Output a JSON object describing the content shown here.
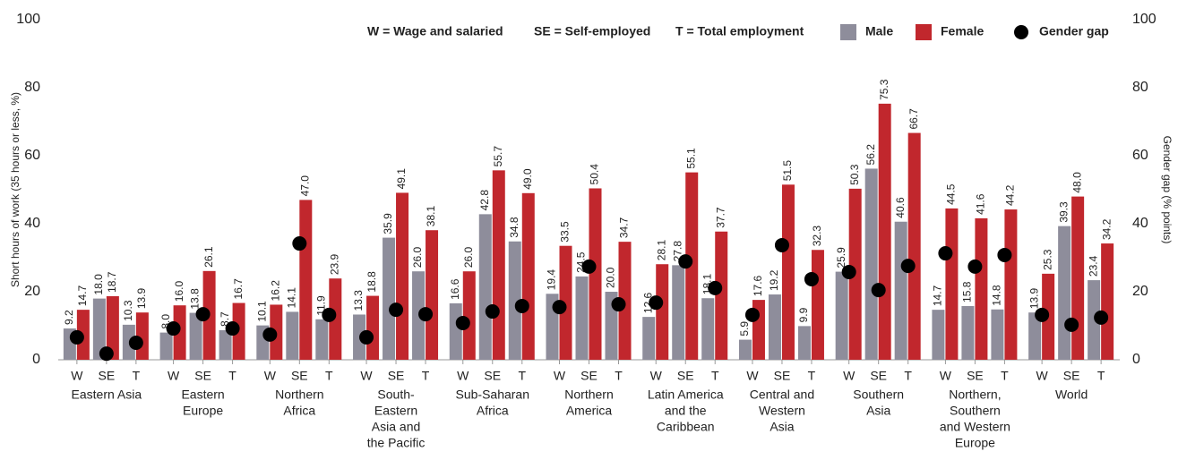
{
  "chart_data": {
    "type": "grouped-bar-dot",
    "notes": [
      "W = Wage and salaried",
      "SE = Self-employed",
      "T = Total employment"
    ],
    "ylabel": "Short hours of work (35 hours or less, %)",
    "y2label": "Gender gap (% points)",
    "ylim": [
      0,
      100
    ],
    "yticks": [
      0,
      20,
      40,
      60,
      80,
      100
    ],
    "y2lim": [
      0,
      100
    ],
    "y2ticks": [
      0,
      20,
      40,
      60,
      80,
      100
    ],
    "groups": [
      {
        "name_lines": [
          "Eastern Asia"
        ]
      },
      {
        "name_lines": [
          "Eastern",
          "Europe"
        ]
      },
      {
        "name_lines": [
          "Northern",
          "Africa"
        ]
      },
      {
        "name_lines": [
          "South-",
          "Eastern",
          "Asia and",
          "the Pacific"
        ]
      },
      {
        "name_lines": [
          "Sub-Saharan",
          "Africa"
        ]
      },
      {
        "name_lines": [
          "Northern",
          "America"
        ]
      },
      {
        "name_lines": [
          "Latin America",
          "and the",
          "Caribbean"
        ]
      },
      {
        "name_lines": [
          "Central and",
          "Western",
          "Asia"
        ]
      },
      {
        "name_lines": [
          "Southern",
          "Asia"
        ]
      },
      {
        "name_lines": [
          "Northern,",
          "Southern",
          "and Western",
          "Europe"
        ]
      },
      {
        "name_lines": [
          "World"
        ]
      }
    ],
    "categories": [
      "W",
      "SE",
      "T",
      "W",
      "SE",
      "T",
      "W",
      "SE",
      "T",
      "W",
      "SE",
      "T",
      "W",
      "SE",
      "T",
      "W",
      "SE",
      "T",
      "W",
      "SE",
      "T",
      "W",
      "SE",
      "T",
      "W",
      "SE",
      "T",
      "W",
      "SE",
      "T",
      "W",
      "SE",
      "T"
    ],
    "series": [
      {
        "name": "Male",
        "color": "#8e8d9b",
        "values": [
          9.2,
          18.0,
          10.3,
          8.0,
          13.8,
          8.7,
          10.1,
          14.1,
          11.9,
          13.3,
          35.9,
          26.0,
          16.6,
          42.8,
          34.8,
          19.4,
          24.5,
          20.0,
          12.6,
          27.8,
          18.1,
          5.9,
          19.2,
          9.9,
          25.9,
          56.2,
          40.6,
          14.7,
          15.8,
          14.8,
          13.9,
          39.3,
          23.4
        ],
        "value_labels": [
          "9.2",
          "18.0",
          "10.3",
          "8.0",
          "13.8",
          "8.7",
          "10.1",
          "14.1",
          "11.9",
          "13.3",
          "35.9",
          "26.0",
          "16.6",
          "42.8",
          "34.8",
          "19.4",
          "24.5",
          "20.0",
          "12.6",
          "27.8",
          "18.1",
          "5.9",
          "19.2",
          "9.9",
          "25.9",
          "56.2",
          "40.6",
          "14.7",
          "15.8",
          "14.8",
          "13.9",
          "39.3",
          "23.4"
        ]
      },
      {
        "name": "Female",
        "color": "#c1272d",
        "values": [
          14.7,
          18.7,
          13.9,
          16.0,
          26.1,
          16.7,
          16.2,
          47.0,
          23.9,
          18.8,
          49.1,
          38.1,
          26.0,
          55.7,
          49.0,
          33.5,
          50.4,
          34.7,
          28.1,
          55.1,
          37.7,
          17.6,
          51.5,
          32.3,
          50.3,
          75.3,
          66.7,
          44.5,
          41.6,
          44.2,
          25.3,
          48.0,
          34.2
        ],
        "value_labels": [
          "14.7",
          "18.7",
          "13.9",
          "16.0",
          "26.1",
          "16.7",
          "16.2",
          "47.0",
          "23.9",
          "18.8",
          "49.1",
          "38.1",
          "26.0",
          "55.7",
          "49.0",
          "33.5",
          "50.4",
          "34.7",
          "28.1",
          "55.1",
          "37.7",
          "17.6",
          "51.5",
          "32.3",
          "50.3",
          "75.3",
          "66.7",
          "44.5",
          "41.6",
          "44.2",
          "25.3",
          "48.0",
          "34.2"
        ]
      },
      {
        "name": "Gender gap",
        "color": "#000000",
        "axis": "y2",
        "values": [
          6.6,
          1.8,
          5.0,
          9.2,
          13.4,
          9.2,
          7.4,
          34.2,
          13.2,
          6.6,
          14.7,
          13.4,
          10.8,
          14.2,
          15.8,
          15.5,
          27.4,
          16.3,
          16.8,
          28.9,
          21.1,
          13.2,
          33.7,
          23.7,
          25.8,
          20.5,
          27.6,
          31.3,
          27.4,
          30.8,
          13.2,
          10.3,
          12.4
        ]
      }
    ]
  }
}
